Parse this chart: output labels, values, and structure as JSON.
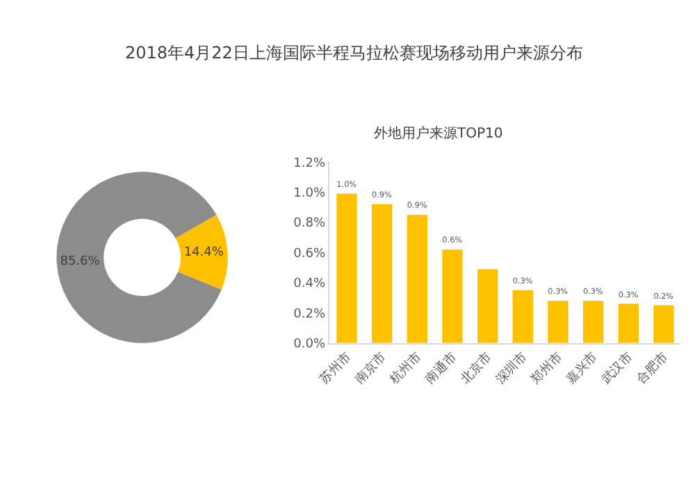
{
  "chart_data": [
    {
      "type": "donut",
      "title": "2018年4月22日上海国际半程马拉松赛现场移动用户来源分布",
      "categories": [
        null,
        null
      ],
      "values": [
        85.6,
        14.4
      ],
      "colors": [
        "#8c8c8c",
        "#ffc000"
      ],
      "value_labels": [
        "85.6%",
        "14.4%"
      ]
    },
    {
      "type": "bar",
      "title": "外地用户来源TOP10",
      "categories": [
        "苏州市",
        "南京市",
        "杭州市",
        "南通市",
        "北京市",
        "深圳市",
        "郑州市",
        "嘉兴市",
        "武汉市",
        "合肥市"
      ],
      "series": [
        {
          "color": "#ffc000",
          "values": [
            0.99,
            0.92,
            0.85,
            0.62,
            0.49,
            0.35,
            0.28,
            0.28,
            0.26,
            0.25
          ],
          "value_labels": [
            "1.0%",
            "0.9%",
            "0.9%",
            "0.6%",
            null,
            "0.3%",
            "0.3%",
            "0.3%",
            "0.3%",
            "0.2%"
          ]
        }
      ],
      "ylim": [
        0,
        1.2
      ],
      "yticks": [
        {
          "value": 0,
          "label": "0.0%"
        },
        {
          "value": 0.2,
          "label": "0.2%"
        },
        {
          "value": 0.4,
          "label": "0.4%"
        },
        {
          "value": 0.6,
          "label": "0.6%"
        },
        {
          "value": 0.8,
          "label": "0.8%"
        },
        {
          "value": 1.0,
          "label": "1.0%"
        },
        {
          "value": 1.2,
          "label": "1.2%"
        }
      ]
    }
  ]
}
